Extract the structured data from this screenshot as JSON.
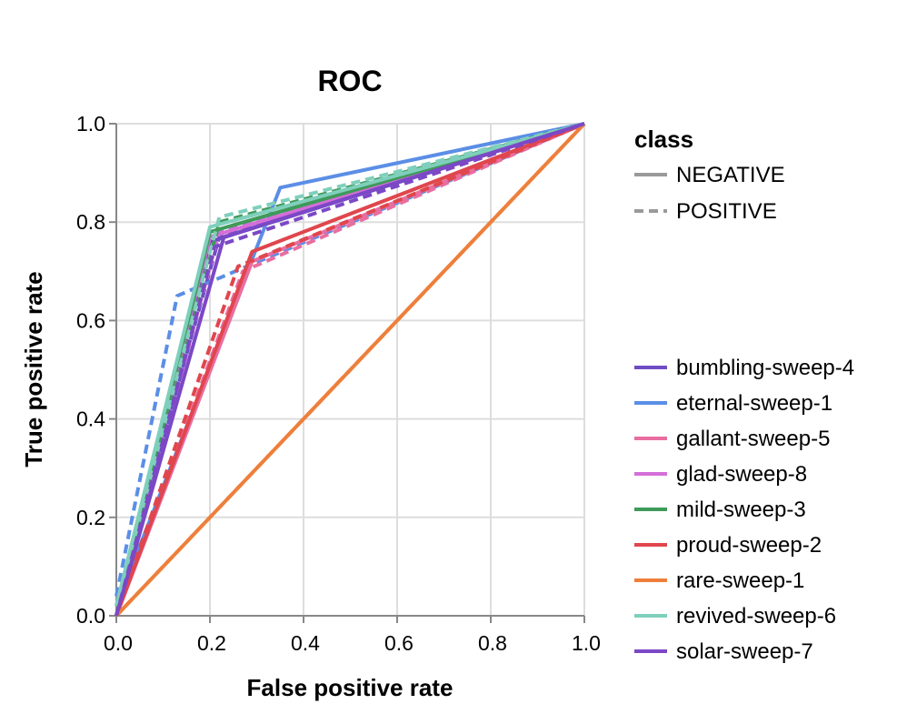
{
  "chart_data": {
    "type": "line",
    "title": "ROC",
    "xlabel": "False positive rate",
    "ylabel": "True positive rate",
    "xlim": [
      0,
      1
    ],
    "ylim": [
      0,
      1
    ],
    "x_ticks": [
      "0.0",
      "0.2",
      "0.4",
      "0.6",
      "0.8",
      "1.0"
    ],
    "y_ticks": [
      "0.0",
      "0.2",
      "0.4",
      "0.6",
      "0.8",
      "1.0"
    ],
    "grid": true,
    "legend_placement": "right",
    "class_legend": {
      "title": "class",
      "items": [
        {
          "label": "NEGATIVE",
          "dash": "solid"
        },
        {
          "label": "POSITIVE",
          "dash": "dashed"
        }
      ]
    },
    "series": [
      {
        "name": "bumbling-sweep-4",
        "color": "#6f4cc4",
        "negative": [
          [
            0,
            0
          ],
          [
            0.2,
            0.76
          ],
          [
            1,
            1
          ]
        ],
        "positive": [
          [
            0,
            0.02
          ],
          [
            0.22,
            0.77
          ],
          [
            1,
            1
          ]
        ]
      },
      {
        "name": "eternal-sweep-1",
        "color": "#5b8ee6",
        "negative": [
          [
            0,
            0.02
          ],
          [
            0.35,
            0.87
          ],
          [
            1,
            1
          ]
        ],
        "positive": [
          [
            0,
            0.04
          ],
          [
            0.13,
            0.65
          ],
          [
            1,
            1
          ]
        ]
      },
      {
        "name": "gallant-sweep-5",
        "color": "#e86ea0",
        "negative": [
          [
            0,
            0
          ],
          [
            0.29,
            0.72
          ],
          [
            1,
            1
          ]
        ],
        "positive": [
          [
            0,
            0
          ],
          [
            0.27,
            0.7
          ],
          [
            1,
            1
          ]
        ]
      },
      {
        "name": "glad-sweep-8",
        "color": "#d56fd8",
        "negative": [
          [
            0,
            0
          ],
          [
            0.2,
            0.77
          ],
          [
            1,
            1
          ]
        ],
        "positive": [
          [
            0,
            0
          ],
          [
            0.22,
            0.78
          ],
          [
            1,
            1
          ]
        ]
      },
      {
        "name": "mild-sweep-3",
        "color": "#3f9a5a",
        "negative": [
          [
            0,
            0
          ],
          [
            0.2,
            0.78
          ],
          [
            1,
            1
          ]
        ],
        "positive": [
          [
            0,
            0
          ],
          [
            0.22,
            0.8
          ],
          [
            1,
            1
          ]
        ]
      },
      {
        "name": "proud-sweep-2",
        "color": "#e0464d",
        "negative": [
          [
            0,
            0
          ],
          [
            0.29,
            0.74
          ],
          [
            1,
            1
          ]
        ],
        "positive": [
          [
            0,
            0
          ],
          [
            0.26,
            0.71
          ],
          [
            1,
            1
          ]
        ]
      },
      {
        "name": "rare-sweep-1",
        "color": "#ee7f3b",
        "negative": [
          [
            0,
            0
          ],
          [
            1,
            1
          ]
        ],
        "positive": [
          [
            0,
            0
          ],
          [
            1,
            1
          ]
        ]
      },
      {
        "name": "revived-sweep-6",
        "color": "#7fcfbc",
        "negative": [
          [
            0,
            0.02
          ],
          [
            0.2,
            0.79
          ],
          [
            1,
            1
          ]
        ],
        "positive": [
          [
            0,
            0.02
          ],
          [
            0.22,
            0.81
          ],
          [
            1,
            1
          ]
        ]
      },
      {
        "name": "solar-sweep-7",
        "color": "#7b48c6",
        "negative": [
          [
            0,
            0
          ],
          [
            0.23,
            0.77
          ],
          [
            1,
            1
          ]
        ],
        "positive": [
          [
            0,
            0
          ],
          [
            0.21,
            0.75
          ],
          [
            1,
            1
          ]
        ]
      }
    ]
  }
}
